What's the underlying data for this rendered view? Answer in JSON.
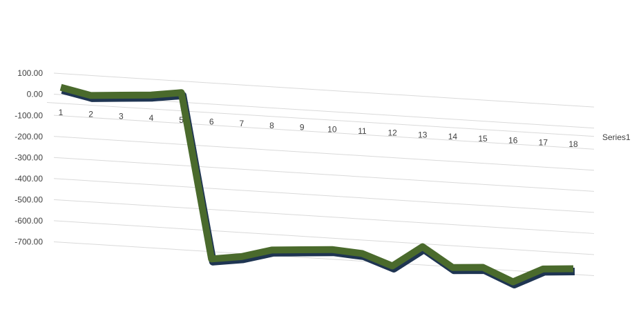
{
  "chart_data": {
    "type": "line",
    "categories": [
      "1",
      "2",
      "3",
      "4",
      "5",
      "6",
      "7",
      "8",
      "9",
      "10",
      "11",
      "12",
      "13",
      "14",
      "15",
      "16",
      "17",
      "18"
    ],
    "series": [
      {
        "name": "Series1",
        "color": "#4a6a2c",
        "values": [
          50,
          20,
          30,
          40,
          60,
          -720,
          -700,
          -660,
          -650,
          -640,
          -650,
          -700,
          -600,
          -690,
          -680,
          -740,
          -670,
          -660
        ]
      }
    ],
    "ylim": [
      -800,
      100
    ],
    "yticks": [
      {
        "value": -700,
        "label": "-700.00"
      },
      {
        "value": -600,
        "label": "-600.00"
      },
      {
        "value": -500,
        "label": "-500.00"
      },
      {
        "value": -400,
        "label": "-400.00"
      },
      {
        "value": -300,
        "label": "-300.00"
      },
      {
        "value": -200,
        "label": "-200.00"
      },
      {
        "value": -100,
        "label": "-100.00"
      },
      {
        "value": 0,
        "label": "0.00"
      },
      {
        "value": 100,
        "label": "100.00"
      }
    ],
    "grid": true
  }
}
